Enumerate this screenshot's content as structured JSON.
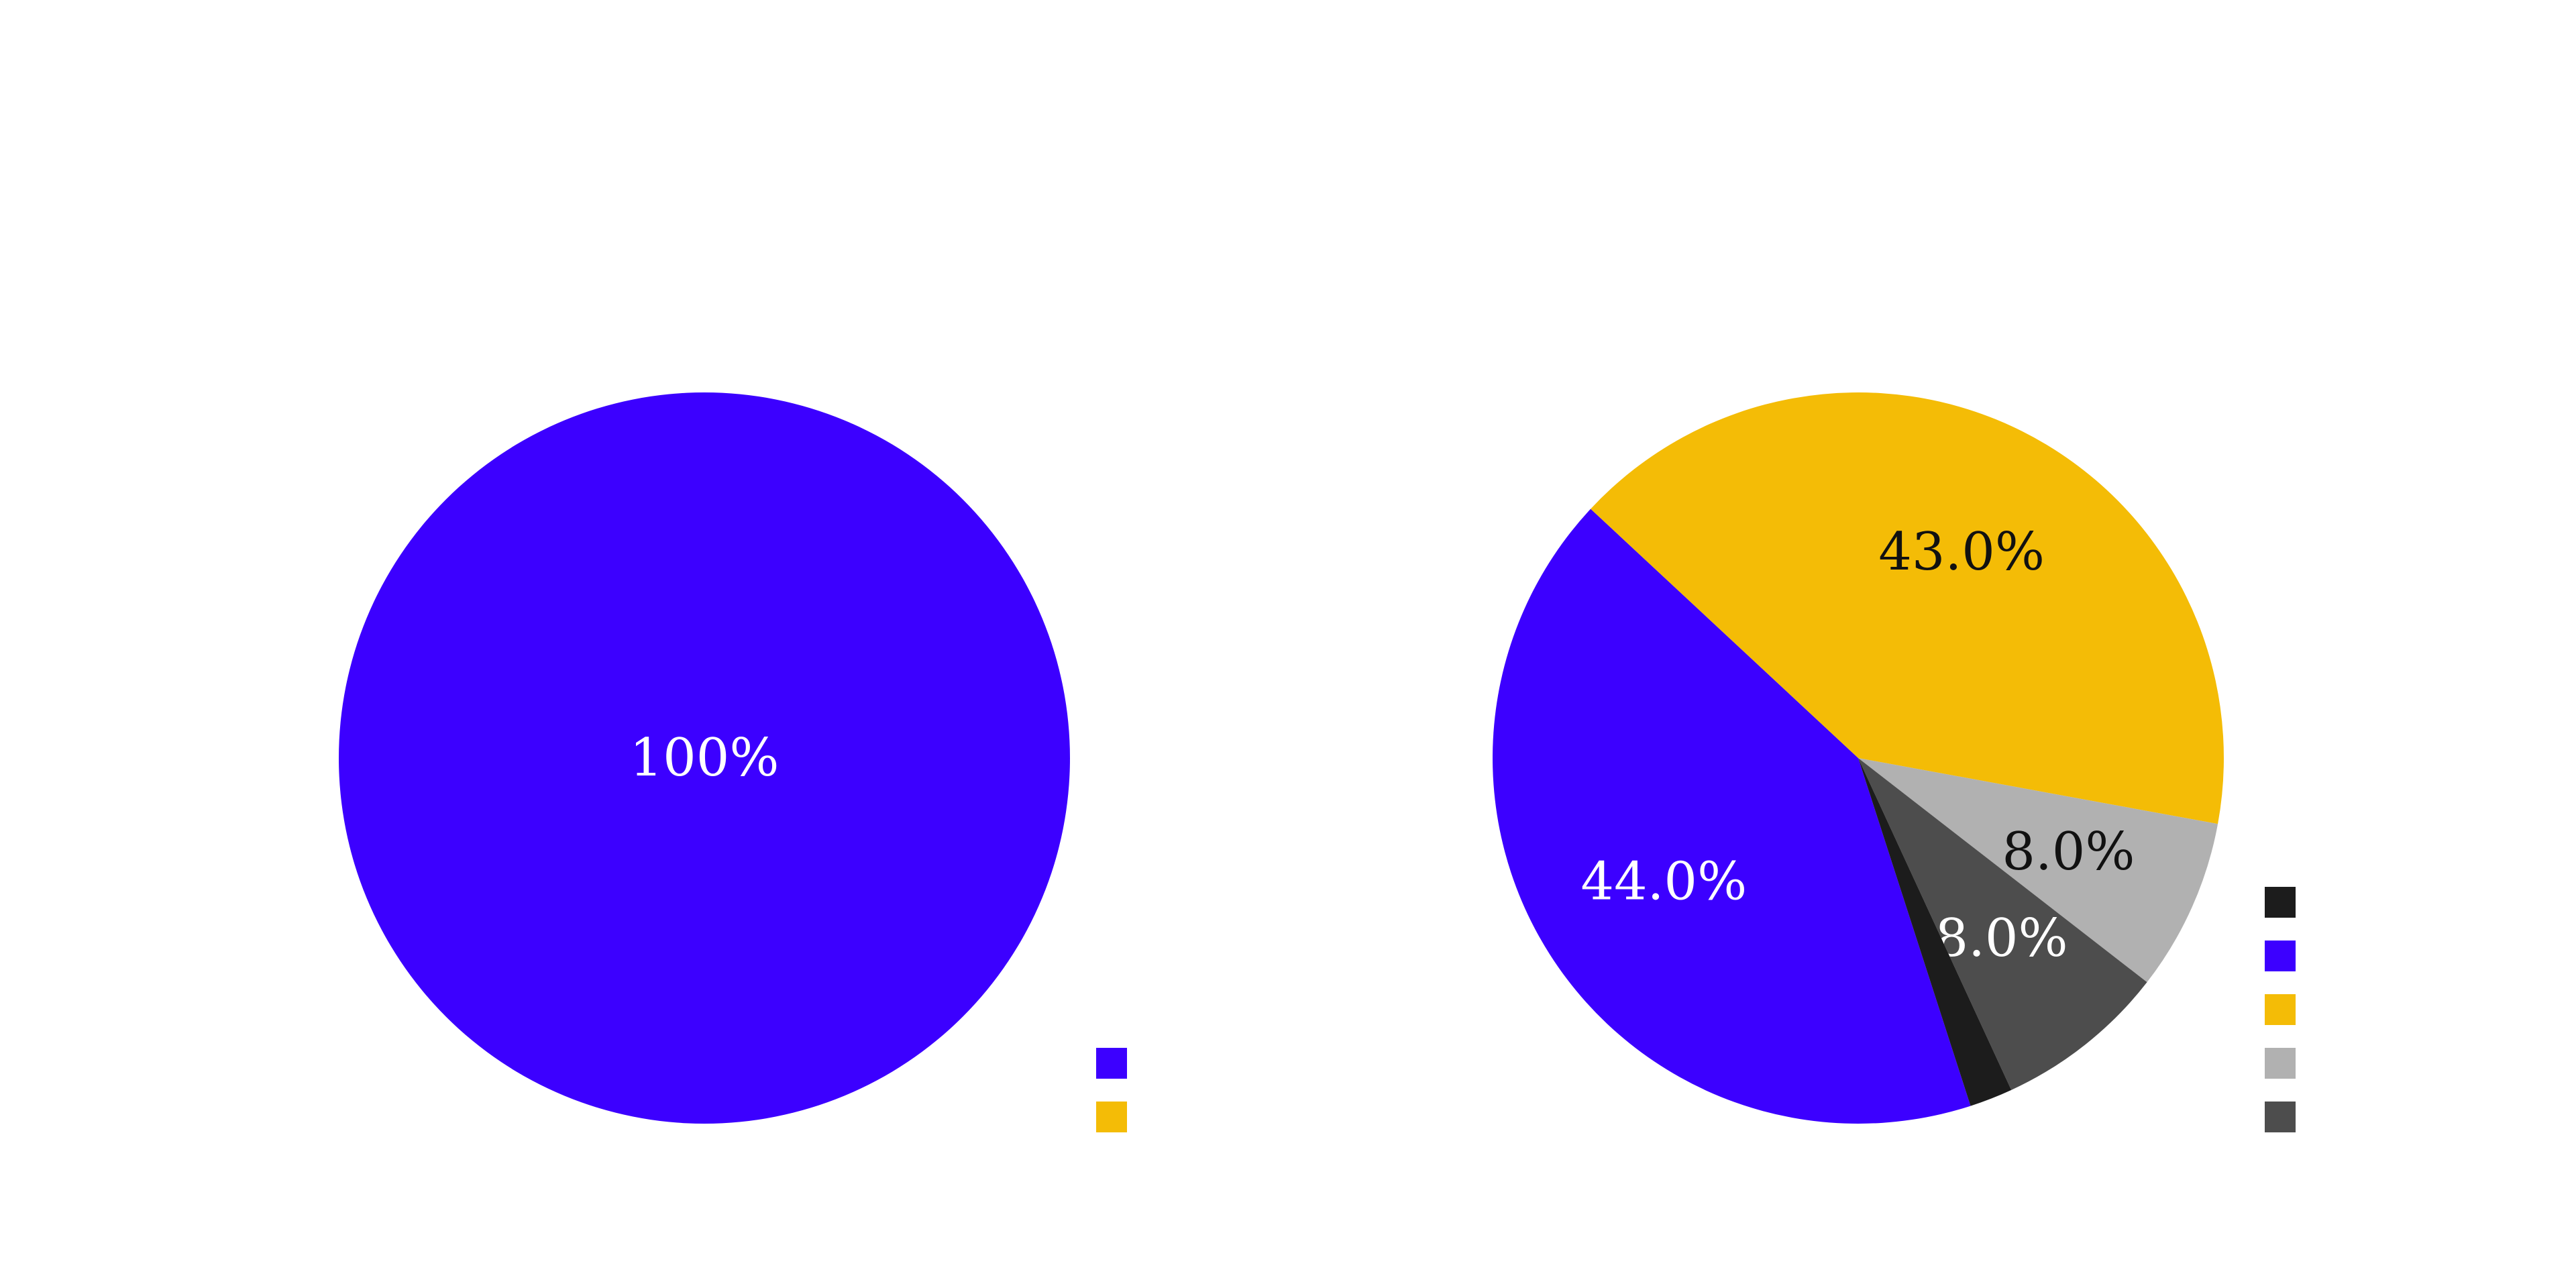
{
  "chart_data": [
    {
      "type": "pie",
      "slices": [
        {
          "value": 100,
          "label": "100%",
          "color": "#3c00ff",
          "label_color": "#ffffff"
        }
      ],
      "legend": {
        "placement": "bottom-right",
        "swatches": [
          "#3c00ff",
          "#f4bc06"
        ]
      }
    },
    {
      "type": "pie",
      "slices": [
        {
          "value": 44.0,
          "label": "44.0%",
          "color": "#3c00ff",
          "label_color": "#ffffff"
        },
        {
          "value": 43.0,
          "label": "43.0%",
          "color": "#f4bc06",
          "label_color": "#111111"
        },
        {
          "value": 8.0,
          "label": "8.0%",
          "color": "#b1b1b1",
          "label_color": "#111111"
        },
        {
          "value": 8.0,
          "label": "8.0%",
          "color": "#4d4d4d",
          "label_color": "#ffffff"
        },
        {
          "value": 2.0,
          "label": "",
          "color": "#1c1c1c",
          "label_color": "#ffffff"
        }
      ],
      "legend": {
        "placement": "bottom-right",
        "swatches": [
          "#1c1c1c",
          "#3c00ff",
          "#f4bc06",
          "#b1b1b1",
          "#4d4d4d"
        ]
      }
    }
  ]
}
